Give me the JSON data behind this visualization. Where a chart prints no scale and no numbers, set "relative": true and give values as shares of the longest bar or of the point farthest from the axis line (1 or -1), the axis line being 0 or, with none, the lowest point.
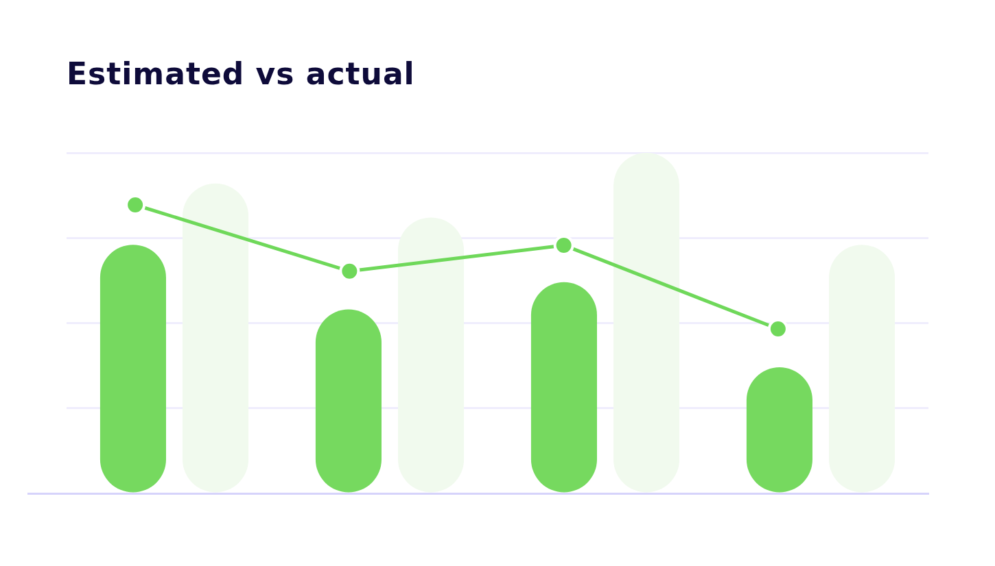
{
  "chart_data": [
    {
      "type": "bar",
      "title": "Estimated vs actual",
      "relative": true,
      "grid": "y",
      "categories": [
        null,
        null,
        null,
        null
      ],
      "series": [
        {
          "color": "#76d95f",
          "values": [
            0.73,
            0.54,
            0.62,
            0.37
          ]
        },
        {
          "color": "#f1faee",
          "values": [
            0.91,
            0.81,
            1.0,
            0.73
          ]
        }
      ]
    },
    {
      "type": "line",
      "relative": true,
      "marker": "circle",
      "line_style": "solid",
      "categories": [
        null,
        null,
        null,
        null
      ],
      "series": [
        {
          "color": "#6fd85a",
          "values": [
            1.0,
            0.77,
            0.86,
            0.57
          ]
        }
      ]
    }
  ]
}
